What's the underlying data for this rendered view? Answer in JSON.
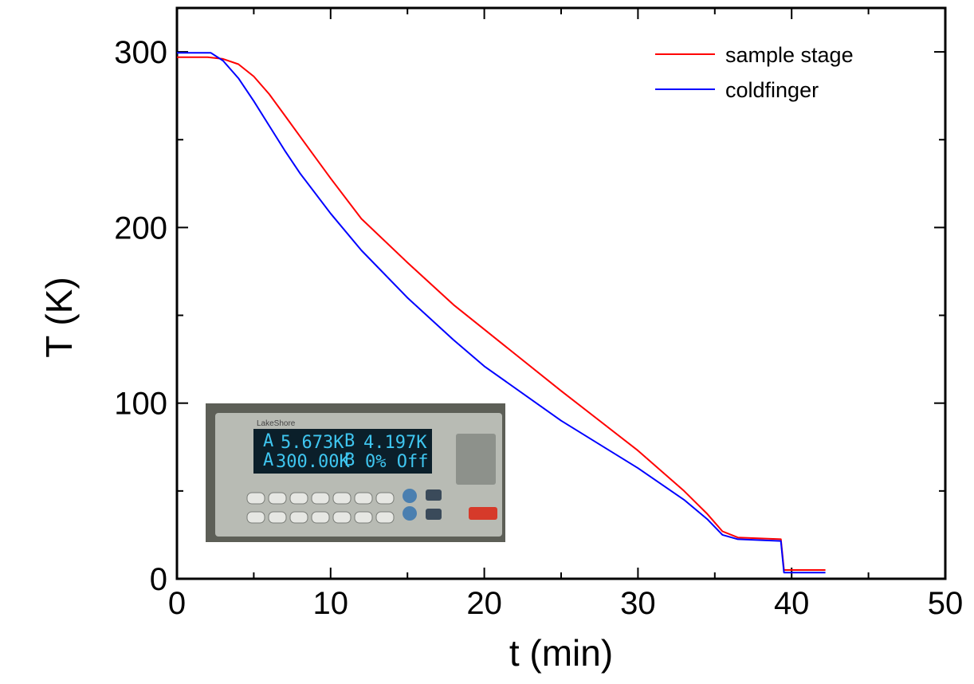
{
  "chart_data": {
    "type": "line",
    "title": "",
    "xlabel": "t (min)",
    "ylabel": "T (K)",
    "xlim": [
      0,
      50
    ],
    "ylim": [
      0,
      325
    ],
    "xticks": [
      0,
      10,
      20,
      30,
      40,
      50
    ],
    "yticks": [
      0,
      100,
      200,
      300
    ],
    "xtick_labels": [
      "0",
      "10",
      "20",
      "30",
      "40",
      "50"
    ],
    "ytick_labels": [
      "0",
      "100",
      "200",
      "300"
    ],
    "grid": false,
    "legend_position": "top-right",
    "series": [
      {
        "name": "sample stage",
        "color": "#ff0000",
        "points": [
          [
            0,
            297
          ],
          [
            2,
            297
          ],
          [
            3,
            296
          ],
          [
            4,
            293
          ],
          [
            5,
            286
          ],
          [
            6,
            276
          ],
          [
            7,
            264
          ],
          [
            8,
            252
          ],
          [
            9,
            240
          ],
          [
            10,
            228
          ],
          [
            12,
            205
          ],
          [
            15,
            180
          ],
          [
            18,
            156
          ],
          [
            20,
            142
          ],
          [
            25,
            107
          ],
          [
            30,
            73
          ],
          [
            33,
            50
          ],
          [
            34.5,
            37
          ],
          [
            35.5,
            27
          ],
          [
            36.5,
            23.5
          ],
          [
            39.3,
            22.5
          ],
          [
            39.5,
            5
          ],
          [
            42.2,
            5
          ]
        ]
      },
      {
        "name": "coldfinger",
        "color": "#0000ff",
        "points": [
          [
            0,
            299.5
          ],
          [
            2.2,
            299.5
          ],
          [
            3,
            295
          ],
          [
            4,
            285
          ],
          [
            5,
            272
          ],
          [
            6,
            258
          ],
          [
            7,
            244
          ],
          [
            8,
            231
          ],
          [
            10,
            208
          ],
          [
            12,
            187
          ],
          [
            15,
            160
          ],
          [
            18,
            136
          ],
          [
            20,
            121
          ],
          [
            25,
            90
          ],
          [
            30,
            63
          ],
          [
            33,
            45
          ],
          [
            34.5,
            34
          ],
          [
            35.5,
            25
          ],
          [
            36.5,
            22.5
          ],
          [
            39.3,
            21.5
          ],
          [
            39.5,
            3.5
          ],
          [
            42.2,
            3.5
          ]
        ]
      }
    ]
  },
  "inset": {
    "brand": "LakeShore",
    "readouts": [
      "5.673K",
      "4.197K",
      "300.00K",
      "0% Off"
    ],
    "channels": [
      "A",
      "B",
      "A",
      "B"
    ]
  }
}
